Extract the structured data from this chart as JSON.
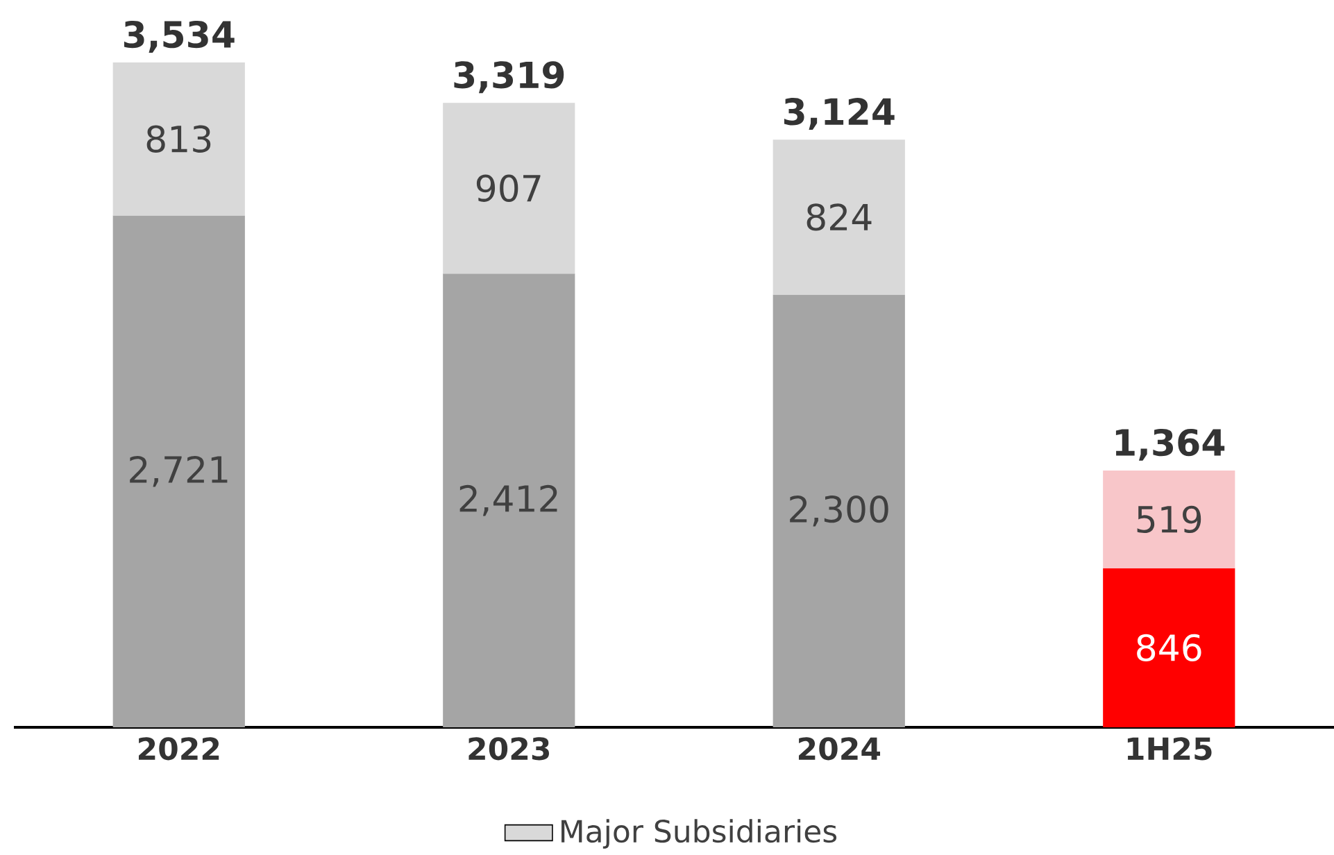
{
  "chart_data": {
    "type": "bar",
    "stacked": true,
    "categories": [
      "2022",
      "2023",
      "2024",
      "1H25"
    ],
    "series": [
      {
        "colors": [
          "#a5a5a5",
          "#a5a5a5",
          "#a5a5a5",
          "#ff0000"
        ],
        "values": [
          2721,
          2412,
          2300,
          846
        ],
        "value_labels": [
          "2,721",
          "2,412",
          "2,300",
          "846"
        ]
      },
      {
        "name": "Major Subsidiaries",
        "colors": [
          "#d9d9d9",
          "#d9d9d9",
          "#d9d9d9",
          "#f8c6c9"
        ],
        "values": [
          813,
          907,
          824,
          519
        ],
        "value_labels": [
          "813",
          "907",
          "824",
          "519"
        ]
      }
    ],
    "totals": [
      "3,534",
      "3,319",
      "3,124",
      "1,364"
    ],
    "legend": "bottom"
  }
}
